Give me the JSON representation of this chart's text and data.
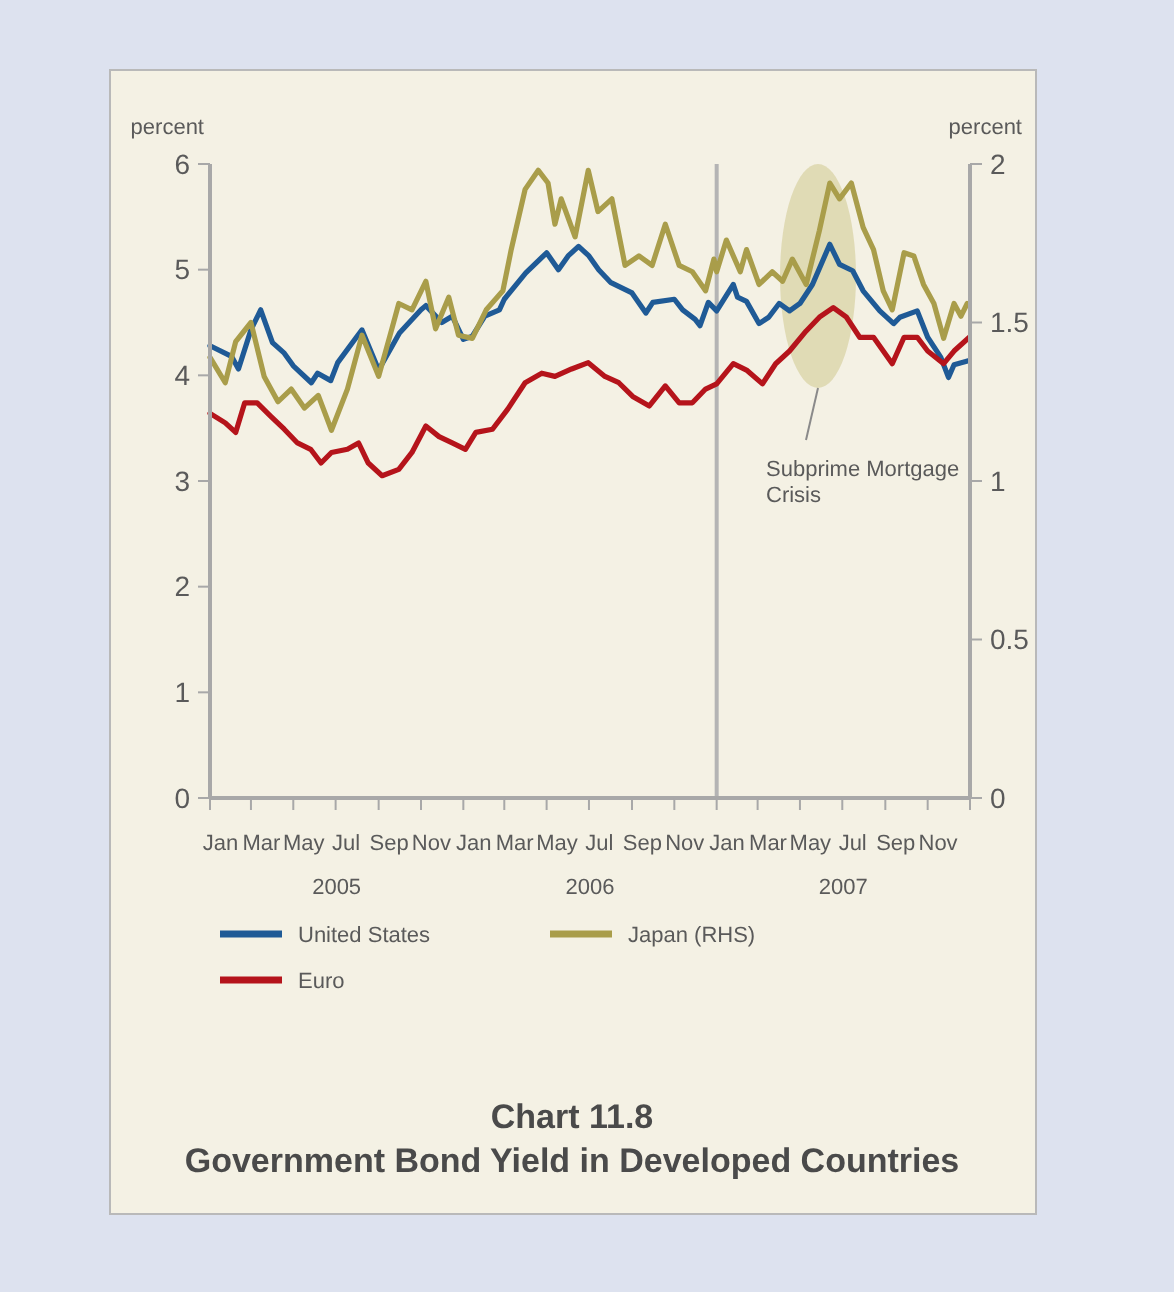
{
  "chart_data": {
    "type": "line",
    "title": "Chart 11.8",
    "subtitle": "Government Bond Yield in Developed Countries",
    "ylabel": "percent",
    "y2label": "percent",
    "xlim": [
      "2005-01-01",
      "2008-01-01"
    ],
    "xticks": [
      {
        "value": "2005-01-01",
        "label": null
      },
      {
        "value": "2005-01-16",
        "label": "Jan"
      },
      {
        "value": "2005-03-01",
        "label": null
      },
      {
        "value": "2005-03-16",
        "label": "Mar"
      },
      {
        "value": "2005-05-01",
        "label": null
      },
      {
        "value": "2005-05-16",
        "label": "May"
      },
      {
        "value": "2005-07-01",
        "label": null
      },
      {
        "value": "2005-07-16",
        "label": "Jul"
      },
      {
        "value": "2005-09-01",
        "label": null
      },
      {
        "value": "2005-09-16",
        "label": "Sep"
      },
      {
        "value": "2005-11-01",
        "label": null
      },
      {
        "value": "2005-11-16",
        "label": "Nov"
      },
      {
        "value": "2006-01-01",
        "label": null
      },
      {
        "value": "2006-01-16",
        "label": "Jan"
      },
      {
        "value": "2006-03-01",
        "label": null
      },
      {
        "value": "2006-03-16",
        "label": "Mar"
      },
      {
        "value": "2006-05-01",
        "label": null
      },
      {
        "value": "2006-05-16",
        "label": "May"
      },
      {
        "value": "2006-07-01",
        "label": null
      },
      {
        "value": "2006-07-16",
        "label": "Jul"
      },
      {
        "value": "2006-09-01",
        "label": null
      },
      {
        "value": "2006-09-16",
        "label": "Sep"
      },
      {
        "value": "2006-11-01",
        "label": null
      },
      {
        "value": "2006-11-16",
        "label": "Nov"
      },
      {
        "value": "2007-01-01",
        "label": null
      },
      {
        "value": "2007-01-16",
        "label": "Jan"
      },
      {
        "value": "2007-03-01",
        "label": null
      },
      {
        "value": "2007-03-16",
        "label": "Mar"
      },
      {
        "value": "2007-05-01",
        "label": null
      },
      {
        "value": "2007-05-16",
        "label": "May"
      },
      {
        "value": "2007-07-01",
        "label": null
      },
      {
        "value": "2007-07-16",
        "label": "Jul"
      },
      {
        "value": "2007-09-01",
        "label": null
      },
      {
        "value": "2007-09-16",
        "label": "Sep"
      },
      {
        "value": "2007-11-01",
        "label": null
      },
      {
        "value": "2007-11-16",
        "label": "Nov"
      },
      {
        "value": "2008-01-01",
        "label": null
      }
    ],
    "ylim": [
      0,
      6
    ],
    "yticks": [
      0,
      1,
      2,
      3,
      4,
      5,
      6
    ],
    "y2lim": [
      0,
      2
    ],
    "y2ticks": [
      0,
      0.5,
      1,
      1.5,
      2
    ],
    "legend": "bottom",
    "grid": false,
    "marker": "none",
    "line_style": "solid",
    "ref_lines": [
      {
        "axis": "x",
        "value": "2007-01-01",
        "color": "#b4b4b4"
      }
    ],
    "annotations": [
      "2005",
      "2006",
      "2007",
      "Subprime Mortgage Crisis"
    ],
    "series": [
      {
        "name": "United States",
        "color": "#1f5a96",
        "x": [
          "2005-01-01",
          "2005-02-01",
          "2005-02-11",
          "2005-03-01",
          "2005-03-15",
          "2005-04-01",
          "2005-04-18",
          "2005-05-01",
          "2005-05-27",
          "2005-06-05",
          "2005-06-24",
          "2005-07-04",
          "2005-08-01",
          "2005-08-08",
          "2005-09-01",
          "2005-10-01",
          "2005-11-01",
          "2005-11-08",
          "2005-12-01",
          "2005-12-16",
          "2006-01-01",
          "2006-01-14",
          "2006-02-01",
          "2006-02-22",
          "2006-03-01",
          "2006-04-01",
          "2006-05-01",
          "2006-05-18",
          "2006-06-01",
          "2006-06-16",
          "2006-07-01",
          "2006-07-15",
          "2006-08-01",
          "2006-09-01",
          "2006-09-21",
          "2006-10-01",
          "2006-11-01",
          "2006-11-13",
          "2006-12-01",
          "2006-12-08",
          "2006-12-20",
          "2007-01-01",
          "2007-01-25",
          "2007-01-31",
          "2007-02-13",
          "2007-03-03",
          "2007-03-17",
          "2007-04-01",
          "2007-04-16",
          "2007-05-01",
          "2007-05-19",
          "2007-06-13",
          "2007-06-27",
          "2007-07-16",
          "2007-07-31",
          "2007-08-24",
          "2007-09-13",
          "2007-09-22",
          "2007-10-17",
          "2007-11-01",
          "2007-11-20",
          "2007-12-01",
          "2007-12-09",
          "2007-12-31"
        ],
        "values": [
          4.28,
          4.18,
          4.06,
          4.43,
          4.62,
          4.31,
          4.21,
          4.09,
          3.93,
          4.02,
          3.95,
          4.12,
          4.37,
          4.43,
          4.05,
          4.4,
          4.62,
          4.66,
          4.5,
          4.56,
          4.34,
          4.37,
          4.56,
          4.62,
          4.72,
          4.97,
          5.16,
          5.0,
          5.13,
          5.22,
          5.13,
          5.0,
          4.88,
          4.78,
          4.59,
          4.69,
          4.72,
          4.62,
          4.53,
          4.47,
          4.69,
          4.61,
          4.86,
          4.74,
          4.7,
          4.49,
          4.55,
          4.68,
          4.61,
          4.68,
          4.86,
          5.24,
          5.05,
          4.99,
          4.8,
          4.61,
          4.49,
          4.55,
          4.61,
          4.36,
          4.17,
          3.98,
          4.1,
          4.14
        ]
      },
      {
        "name": "Euro",
        "color": "#b5141b",
        "x": [
          "2005-01-01",
          "2005-01-23",
          "2005-02-07",
          "2005-02-20",
          "2005-03-10",
          "2005-03-30",
          "2005-04-18",
          "2005-05-07",
          "2005-05-26",
          "2005-06-10",
          "2005-06-25",
          "2005-07-18",
          "2005-08-03",
          "2005-08-17",
          "2005-09-06",
          "2005-09-30",
          "2005-10-19",
          "2005-11-08",
          "2005-11-27",
          "2005-12-16",
          "2006-01-04",
          "2006-01-19",
          "2006-02-12",
          "2006-03-06",
          "2006-03-31",
          "2006-04-24",
          "2006-05-13",
          "2006-06-06",
          "2006-06-30",
          "2006-07-24",
          "2006-08-13",
          "2006-09-02",
          "2006-09-26",
          "2006-10-19",
          "2006-11-08",
          "2006-11-27",
          "2006-12-16",
          "2007-01-01",
          "2007-01-25",
          "2007-02-13",
          "2007-03-08",
          "2007-03-27",
          "2007-04-16",
          "2007-05-10",
          "2007-05-29",
          "2007-06-18",
          "2007-07-07",
          "2007-07-26",
          "2007-08-15",
          "2007-09-11",
          "2007-09-28",
          "2007-10-17",
          "2007-11-01",
          "2007-11-24",
          "2007-12-09",
          "2007-12-31"
        ],
        "values": [
          3.64,
          3.55,
          3.46,
          3.74,
          3.74,
          3.61,
          3.49,
          3.36,
          3.3,
          3.17,
          3.27,
          3.3,
          3.36,
          3.17,
          3.05,
          3.11,
          3.27,
          3.52,
          3.42,
          3.36,
          3.3,
          3.46,
          3.49,
          3.68,
          3.93,
          4.02,
          3.99,
          4.06,
          4.12,
          3.99,
          3.93,
          3.8,
          3.71,
          3.9,
          3.74,
          3.74,
          3.87,
          3.92,
          4.11,
          4.05,
          3.92,
          4.11,
          4.23,
          4.42,
          4.55,
          4.64,
          4.55,
          4.36,
          4.36,
          4.11,
          4.36,
          4.36,
          4.23,
          4.11,
          4.23,
          4.36
        ]
      },
      {
        "name": "Japan (RHS)",
        "color": "#a99d4a",
        "axis": "y2",
        "x": [
          "2005-01-01",
          "2005-01-23",
          "2005-02-07",
          "2005-03-01",
          "2005-03-20",
          "2005-04-09",
          "2005-04-28",
          "2005-05-17",
          "2005-06-06",
          "2005-06-25",
          "2005-07-18",
          "2005-08-08",
          "2005-09-01",
          "2005-09-20",
          "2005-09-30",
          "2005-10-19",
          "2005-11-08",
          "2005-11-22",
          "2005-12-11",
          "2005-12-25",
          "2006-01-14",
          "2006-02-03",
          "2006-02-27",
          "2006-03-11",
          "2006-03-31",
          "2006-04-19",
          "2006-05-03",
          "2006-05-13",
          "2006-05-22",
          "2006-06-11",
          "2006-06-30",
          "2006-07-14",
          "2006-08-03",
          "2006-08-22",
          "2006-09-11",
          "2006-09-30",
          "2006-10-19",
          "2006-11-08",
          "2006-11-27",
          "2006-12-16",
          "2006-12-28",
          "2007-01-01",
          "2007-01-15",
          "2007-02-04",
          "2007-02-13",
          "2007-03-03",
          "2007-03-22",
          "2007-04-06",
          "2007-04-20",
          "2007-05-10",
          "2007-05-29",
          "2007-06-13",
          "2007-06-27",
          "2007-07-14",
          "2007-07-31",
          "2007-08-15",
          "2007-08-29",
          "2007-09-11",
          "2007-09-28",
          "2007-10-12",
          "2007-10-26",
          "2007-11-10",
          "2007-11-24",
          "2007-12-09",
          "2007-12-19",
          "2007-12-28"
        ],
        "values": [
          1.39,
          1.31,
          1.44,
          1.5,
          1.33,
          1.25,
          1.29,
          1.23,
          1.27,
          1.16,
          1.29,
          1.46,
          1.33,
          1.48,
          1.56,
          1.54,
          1.63,
          1.48,
          1.58,
          1.46,
          1.45,
          1.54,
          1.6,
          1.73,
          1.92,
          1.98,
          1.94,
          1.81,
          1.89,
          1.77,
          1.98,
          1.85,
          1.89,
          1.68,
          1.71,
          1.68,
          1.81,
          1.68,
          1.66,
          1.6,
          1.7,
          1.66,
          1.76,
          1.66,
          1.73,
          1.62,
          1.66,
          1.63,
          1.7,
          1.62,
          1.79,
          1.94,
          1.89,
          1.94,
          1.8,
          1.73,
          1.6,
          1.54,
          1.72,
          1.71,
          1.62,
          1.56,
          1.45,
          1.56,
          1.52,
          1.56
        ]
      }
    ]
  }
}
